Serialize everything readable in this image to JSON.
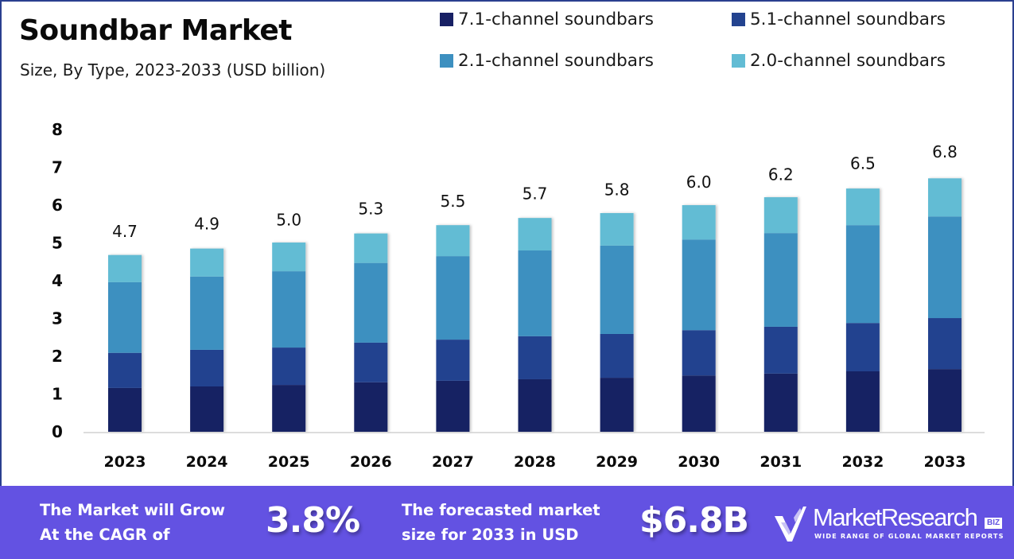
{
  "header": {
    "title": "Soundbar Market",
    "subtitle": "Size, By Type, 2023-2033 (USD billion)"
  },
  "legend": [
    {
      "label": "7.1-channel soundbars",
      "color": "#182064"
    },
    {
      "label": "5.1-channel soundbars",
      "color": "#23438f"
    },
    {
      "label": "2.1-channel soundbars",
      "color": "#3d90c0"
    },
    {
      "label": "2.0-channel soundbars",
      "color": "#62bcd4"
    }
  ],
  "chart_data": {
    "type": "bar",
    "stacked": true,
    "title": "Soundbar Market",
    "subtitle": "Size, By Type, 2023-2033 (USD billion)",
    "xlabel": "",
    "ylabel": "",
    "ylim": [
      0,
      8
    ],
    "yticks": [
      "0",
      "1",
      "2",
      "3",
      "4",
      "5",
      "6",
      "7",
      "8"
    ],
    "grid": false,
    "legend_position": "top-right",
    "categories": [
      "2023",
      "2024",
      "2025",
      "2026",
      "2027",
      "2028",
      "2029",
      "2030",
      "2031",
      "2032",
      "2033"
    ],
    "series": [
      {
        "name": "7.1-channel soundbars",
        "color": "#182064",
        "values": [
          1.16,
          1.2,
          1.24,
          1.31,
          1.35,
          1.39,
          1.43,
          1.49,
          1.54,
          1.6,
          1.66
        ]
      },
      {
        "name": "5.1-channel soundbars",
        "color": "#23438f",
        "values": [
          0.93,
          0.97,
          0.99,
          1.05,
          1.09,
          1.14,
          1.16,
          1.2,
          1.24,
          1.28,
          1.35
        ]
      },
      {
        "name": "2.1-channel soundbars",
        "color": "#3d90c0",
        "values": [
          1.87,
          1.94,
          2.02,
          2.11,
          2.21,
          2.27,
          2.34,
          2.4,
          2.48,
          2.59,
          2.69
        ]
      },
      {
        "name": "2.0-channel soundbars",
        "color": "#62bcd4",
        "values": [
          0.72,
          0.74,
          0.76,
          0.78,
          0.82,
          0.86,
          0.86,
          0.91,
          0.95,
          0.97,
          1.01
        ]
      }
    ],
    "totals": [
      4.7,
      4.9,
      5.0,
      5.3,
      5.5,
      5.7,
      5.8,
      6.0,
      6.2,
      6.5,
      6.8
    ],
    "total_labels": [
      "4.7",
      "4.9",
      "5.0",
      "5.3",
      "5.5",
      "5.7",
      "5.8",
      "6.0",
      "6.2",
      "6.5",
      "6.8"
    ]
  },
  "footer": {
    "cagr_text_line1": "The Market will Grow",
    "cagr_text_line2": "At the CAGR of",
    "cagr_value": "3.8%",
    "forecast_text_line1": "The forecasted market",
    "forecast_text_line2": "size for 2033 in USD",
    "forecast_value": "$6.8B",
    "brand_name": "MarketResearch",
    "brand_badge": "BIZ",
    "brand_tagline": "WIDE RANGE OF GLOBAL MARKET REPORTS",
    "background_color": "#6352e2"
  }
}
